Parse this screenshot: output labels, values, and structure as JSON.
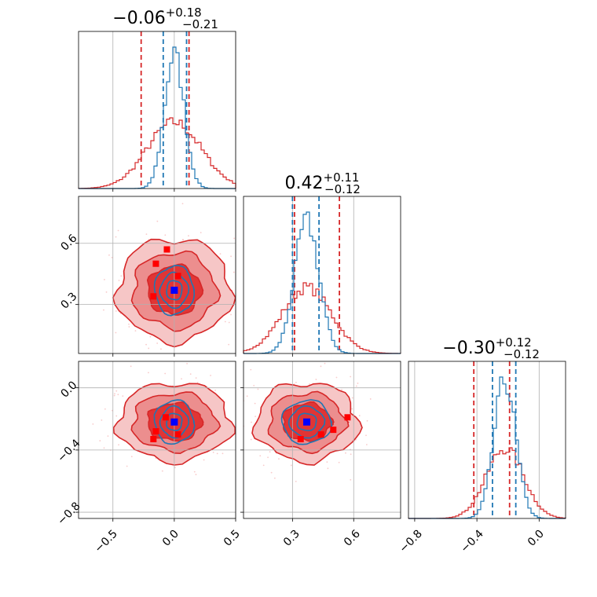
{
  "chart_data": {
    "type": "corner",
    "parameters": [
      {
        "title_main": "−0.06",
        "title_sup": "+0.18",
        "title_sub": "−0.21",
        "range": [
          -0.78,
          0.5
        ],
        "ticks": [
          -0.5,
          0.0,
          0.5
        ],
        "tick_labels": [
          "−0.5",
          "0.0",
          "0.5"
        ]
      },
      {
        "title_main": "0.42",
        "title_sup": "+0.11",
        "title_sub": "−0.12",
        "range": [
          0.06,
          0.83
        ],
        "ticks": [
          0.3,
          0.6
        ],
        "tick_labels": [
          "0.3",
          "0.6"
        ]
      },
      {
        "title_main": "−0.30",
        "title_sup": "+0.12",
        "title_sub": "−0.12",
        "range": [
          -0.84,
          0.17
        ],
        "ticks": [
          -0.8,
          -0.4,
          0.0
        ],
        "tick_labels": [
          "−0.8",
          "−0.4",
          "0.0"
        ]
      }
    ],
    "series": [
      {
        "color": "#d62728",
        "fill": true,
        "quantile_lines": [
          [
            -0.27,
            0.12
          ],
          [
            0.31,
            0.53
          ],
          [
            -0.42,
            -0.19
          ]
        ],
        "spread": [
          0.22,
          0.12,
          0.12
        ]
      },
      {
        "color": "#1f77b4",
        "fill": false,
        "quantile_lines": [
          [
            -0.09,
            0.1
          ],
          [
            0.3,
            0.43
          ],
          [
            -0.3,
            -0.15
          ]
        ],
        "spread": [
          0.08,
          0.06,
          0.07
        ]
      }
    ],
    "centers": [
      0.0,
      0.37,
      -0.22
    ],
    "truth_points": {
      "color": "#0000ff",
      "points": [
        [
          0.0,
          0.37,
          -0.22
        ]
      ]
    },
    "sample_points": {
      "color": "#ff0000",
      "points_01": [
        [
          -0.06,
          0.57
        ],
        [
          -0.15,
          0.5
        ],
        [
          0.03,
          0.44
        ],
        [
          -0.17,
          0.34
        ]
      ],
      "points_02": [
        [
          -0.07,
          -0.19
        ],
        [
          0.03,
          -0.3
        ],
        [
          -0.15,
          -0.28
        ],
        [
          -0.17,
          -0.33
        ]
      ],
      "points_12": [
        [
          0.57,
          -0.19
        ],
        [
          0.5,
          -0.27
        ],
        [
          0.44,
          -0.3
        ],
        [
          0.34,
          -0.33
        ]
      ]
    },
    "grid": true
  }
}
